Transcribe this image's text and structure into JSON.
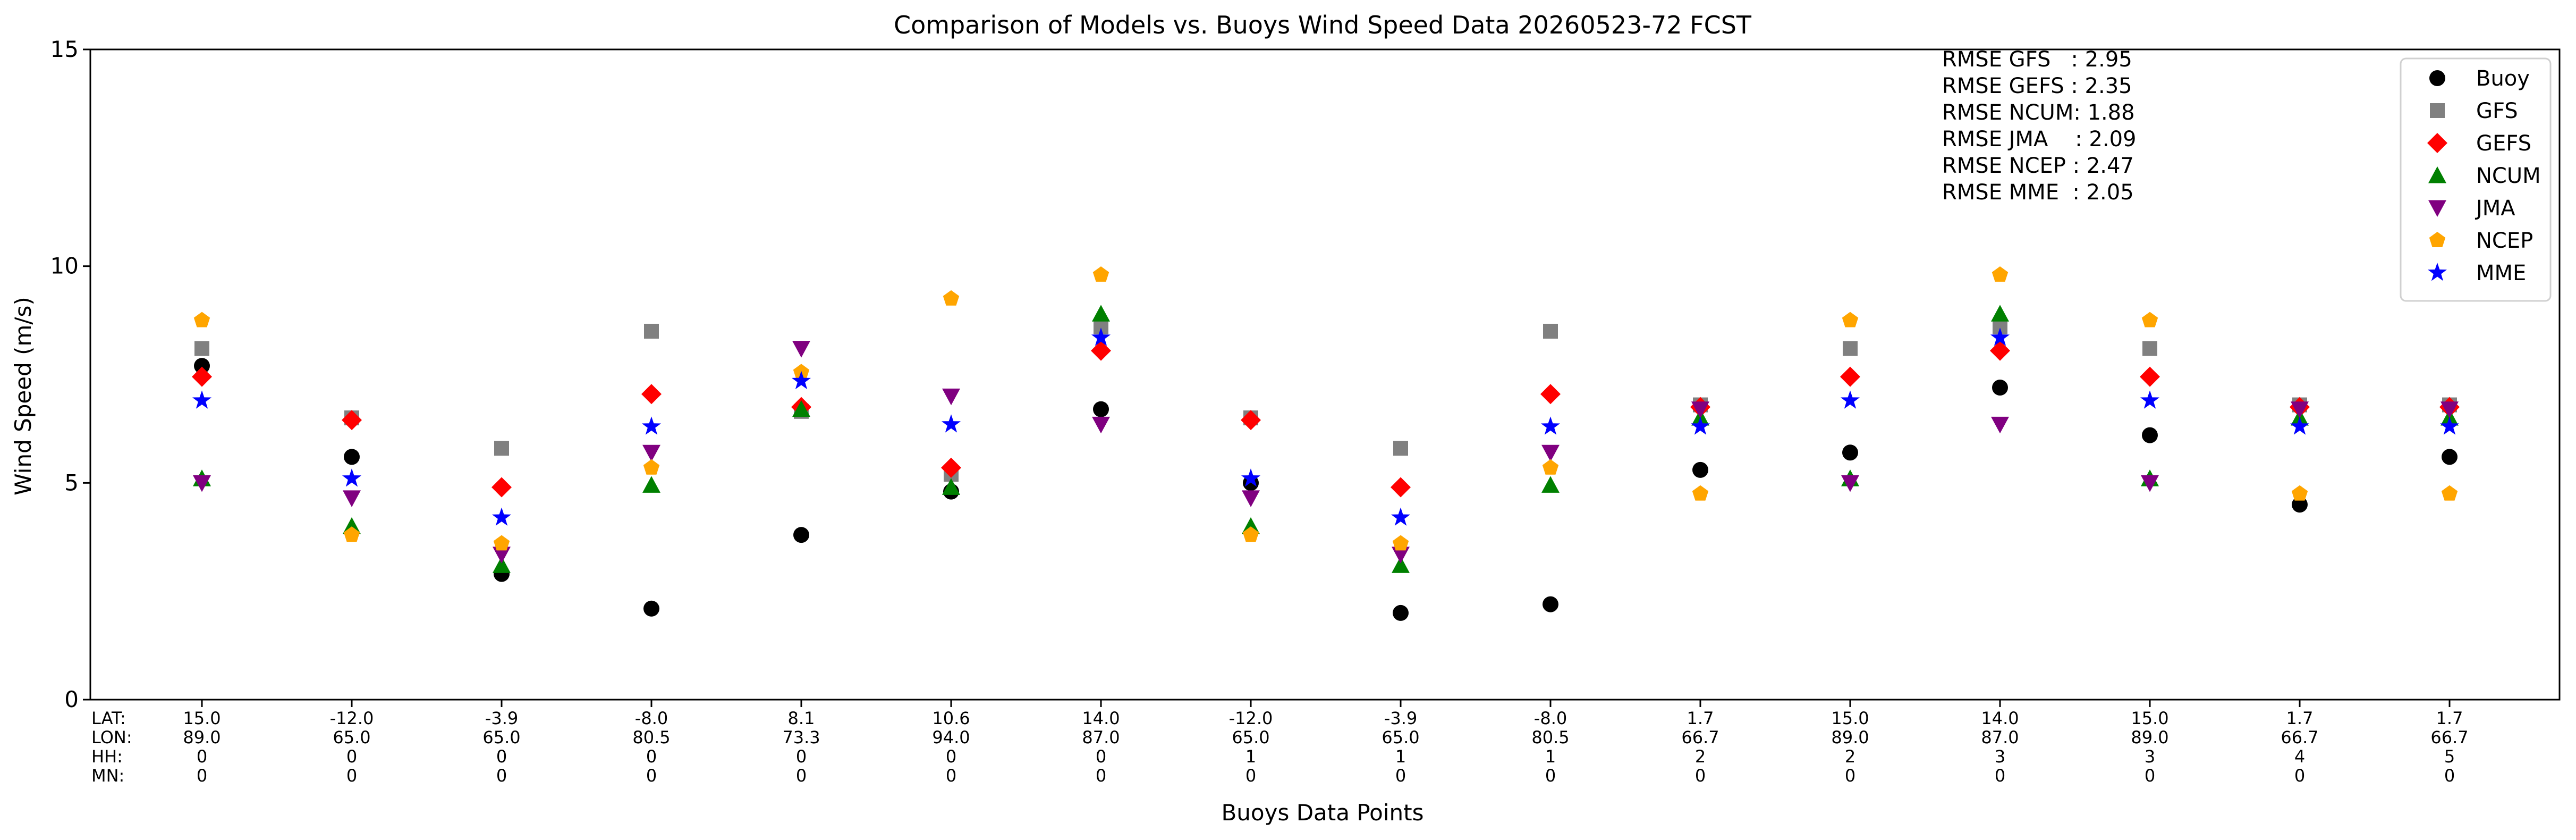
{
  "chart_data": {
    "type": "scatter",
    "title": "Comparison of Models vs. Buoys Wind Speed Data 20260523-72 FCST",
    "xlabel": "Buoys Data Points",
    "ylabel": "Wind Speed (m/s)",
    "ylim": [
      0,
      15
    ],
    "yticks": [
      "0",
      "5",
      "10",
      "15"
    ],
    "grid": false,
    "legend_position": "top-right",
    "point_label_headers": [
      "LAT:",
      "LON:",
      "HH:",
      "MN:"
    ],
    "point_labels": [
      [
        "15.0",
        "89.0",
        "0",
        "0"
      ],
      [
        "-12.0",
        "65.0",
        "0",
        "0"
      ],
      [
        "-3.9",
        "65.0",
        "0",
        "0"
      ],
      [
        "-8.0",
        "80.5",
        "0",
        "0"
      ],
      [
        "8.1",
        "73.3",
        "0",
        "0"
      ],
      [
        "10.6",
        "94.0",
        "0",
        "0"
      ],
      [
        "14.0",
        "87.0",
        "0",
        "0"
      ],
      [
        "-12.0",
        "65.0",
        "1",
        "0"
      ],
      [
        "-3.9",
        "65.0",
        "1",
        "0"
      ],
      [
        "-8.0",
        "80.5",
        "1",
        "0"
      ],
      [
        "1.7",
        "66.7",
        "2",
        "0"
      ],
      [
        "15.0",
        "89.0",
        "2",
        "0"
      ],
      [
        "14.0",
        "87.0",
        "3",
        "0"
      ],
      [
        "15.0",
        "89.0",
        "3",
        "0"
      ],
      [
        "1.7",
        "66.7",
        "4",
        "0"
      ],
      [
        "1.7",
        "66.7",
        "5",
        "0"
      ]
    ],
    "rmse_lines": [
      "RMSE GFS   : 2.95",
      "RMSE GEFS : 2.35",
      "RMSE NCUM: 1.88",
      "RMSE JMA    : 2.09",
      "RMSE NCEP : 2.47",
      "RMSE MME  : 2.05"
    ],
    "series": [
      {
        "name": "Buoy",
        "marker": "circle",
        "color": "#000000",
        "values": [
          7.7,
          5.6,
          2.9,
          2.1,
          3.8,
          4.8,
          6.7,
          5.0,
          2.0,
          2.2,
          5.3,
          5.7,
          7.2,
          6.1,
          4.5,
          5.6
        ]
      },
      {
        "name": "GFS",
        "marker": "square",
        "color": "#808080",
        "values": [
          8.1,
          6.5,
          5.8,
          8.5,
          6.65,
          5.2,
          8.6,
          6.5,
          5.8,
          8.5,
          6.8,
          8.1,
          8.6,
          8.1,
          6.8,
          6.8
        ]
      },
      {
        "name": "GEFS",
        "marker": "diamond",
        "color": "#ff0000",
        "values": [
          7.45,
          6.45,
          4.9,
          7.05,
          6.75,
          5.35,
          8.05,
          6.45,
          4.9,
          7.05,
          6.75,
          7.45,
          8.05,
          7.45,
          6.75,
          6.75
        ]
      },
      {
        "name": "NCUM",
        "marker": "triangle-up",
        "color": "#008000",
        "values": [
          5.1,
          4.0,
          3.1,
          4.95,
          6.7,
          4.9,
          8.9,
          4.0,
          3.1,
          4.95,
          6.5,
          5.1,
          8.9,
          5.1,
          6.5,
          6.5
        ]
      },
      {
        "name": "JMA",
        "marker": "triangle-down",
        "color": "#800080",
        "values": [
          5.0,
          4.65,
          3.35,
          5.7,
          8.1,
          7.0,
          6.35,
          4.65,
          3.35,
          5.7,
          6.7,
          5.0,
          6.35,
          5.0,
          6.7,
          6.7
        ]
      },
      {
        "name": "NCEP",
        "marker": "pentagon",
        "color": "#ffa500",
        "values": [
          8.75,
          3.8,
          3.6,
          5.35,
          7.55,
          9.25,
          9.8,
          3.8,
          3.6,
          5.35,
          4.75,
          8.75,
          9.8,
          8.75,
          4.75,
          4.75
        ]
      },
      {
        "name": "MME",
        "marker": "star",
        "color": "#0000ff",
        "values": [
          6.9,
          5.1,
          4.2,
          6.3,
          7.35,
          6.35,
          8.35,
          5.1,
          4.2,
          6.3,
          6.3,
          6.9,
          8.35,
          6.9,
          6.3,
          6.3
        ]
      }
    ]
  }
}
